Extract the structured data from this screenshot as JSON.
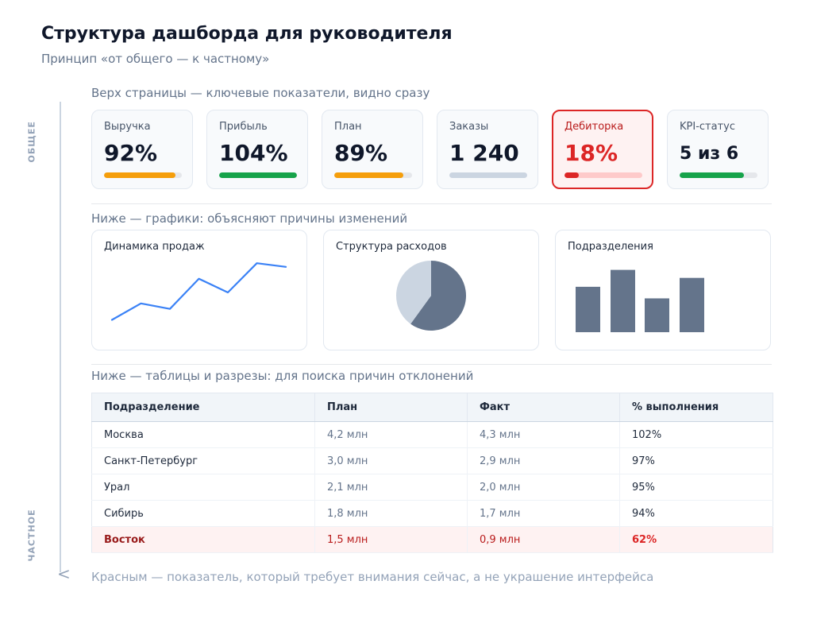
{
  "header": {
    "title": "Структура дашборда для руководителя",
    "subtitle": "Принцип «от общего — к частному»"
  },
  "axis": {
    "top_label": "ОБЩЕЕ",
    "bottom_label": "ЧАСТНОЕ"
  },
  "sections": {
    "kpi_label": "Верх страницы — ключевые показатели, видно сразу",
    "charts_label": "Ниже — графики: объясняют причины изменений",
    "table_label": "Ниже — таблицы и разрезы: для поиска причин отклонений"
  },
  "kpis": [
    {
      "label": "Выручка",
      "value": "92%",
      "progress": 0.92,
      "color": "#f59e0b"
    },
    {
      "label": "Прибыль",
      "value": "104%",
      "progress": 1.0,
      "color": "#16a34a"
    },
    {
      "label": "План",
      "value": "89%",
      "progress": 0.89,
      "color": "#f59e0b"
    },
    {
      "label": "Заказы",
      "value": "1 240",
      "progress": 1.0,
      "color": "#cbd5e1"
    },
    {
      "label": "Дебиторка",
      "value": "18%",
      "progress": 0.18,
      "color": "#dc2626",
      "alert": true
    },
    {
      "label": "KPI-статус",
      "value": "5 из 6",
      "progress": 0.83,
      "color": "#16a34a"
    }
  ],
  "charts": {
    "sales": {
      "title": "Динамика продаж",
      "color": "#3b82f6"
    },
    "expenses": {
      "title": "Структура расходов",
      "colors": [
        "#64748b",
        "#cbd5e1"
      ]
    },
    "divisions": {
      "title": "Подразделения",
      "color": "#64748b"
    }
  },
  "chart_data": [
    {
      "type": "line",
      "title": "Динамика продаж",
      "values": [
        10,
        28,
        22,
        55,
        40,
        72,
        68
      ],
      "ylim": [
        0,
        80
      ]
    },
    {
      "type": "pie",
      "title": "Структура расходов",
      "values": [
        0.6,
        0.4
      ]
    },
    {
      "type": "bar",
      "title": "Подразделения",
      "values": [
        51,
        70,
        38,
        61
      ],
      "ylim": [
        0,
        75
      ]
    }
  ],
  "table": {
    "headers": [
      "Подразделение",
      "План",
      "Факт",
      "% выполнения"
    ],
    "rows": [
      {
        "name": "Москва",
        "plan": "4,2 млн",
        "fact": "4,3 млн",
        "pct": "102%"
      },
      {
        "name": "Санкт-Петербург",
        "plan": "3,0 млн",
        "fact": "2,9 млн",
        "pct": "97%"
      },
      {
        "name": "Урал",
        "plan": "2,1 млн",
        "fact": "2,0 млн",
        "pct": "95%"
      },
      {
        "name": "Сибирь",
        "plan": "1,8 млн",
        "fact": "1,7 млн",
        "pct": "94%"
      },
      {
        "name": "Восток",
        "plan": "1,5 млн",
        "fact": "0,9 млн",
        "pct": "62%",
        "highlight": true
      }
    ]
  },
  "footnote": "Красным — показатель, который требует внимания сейчас, а не украшение интерфейса",
  "arrow_glyph": "<"
}
